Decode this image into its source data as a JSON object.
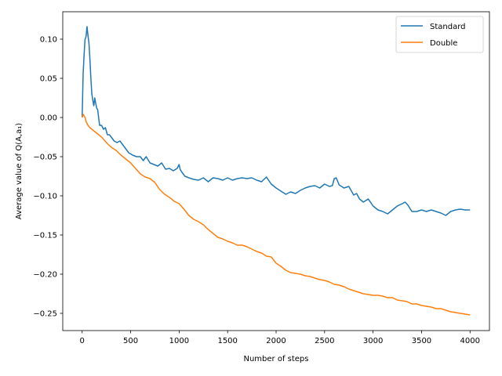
{
  "chart_data": {
    "type": "line",
    "xlabel": "Number of steps",
    "ylabel": "Average value of Q(A,a₁)",
    "xlim": [
      -200,
      4200
    ],
    "ylim": [
      -0.272,
      0.135
    ],
    "x_ticks": [
      0,
      500,
      1000,
      1500,
      2000,
      2500,
      3000,
      3500,
      4000
    ],
    "x_tick_labels": [
      "0",
      "500",
      "1000",
      "1500",
      "2000",
      "2500",
      "3000",
      "3500",
      "4000"
    ],
    "y_ticks": [
      0.1,
      0.05,
      0.0,
      -0.05,
      -0.1,
      -0.15,
      -0.2,
      -0.25
    ],
    "y_tick_labels": [
      "0.10",
      "0.05",
      "0.00",
      "−0.05",
      "−0.10",
      "−0.15",
      "−0.20",
      "−0.25"
    ],
    "grid": false,
    "legend_position": "top-right",
    "series": [
      {
        "name": "Standard",
        "color": "#1f77b4",
        "x": [
          0,
          10,
          20,
          30,
          40,
          50,
          60,
          70,
          80,
          90,
          100,
          110,
          120,
          130,
          140,
          150,
          160,
          170,
          180,
          190,
          200,
          220,
          240,
          260,
          280,
          300,
          330,
          360,
          390,
          420,
          450,
          480,
          520,
          560,
          600,
          630,
          660,
          700,
          740,
          780,
          820,
          860,
          900,
          940,
          980,
          1000,
          1010,
          1030,
          1060,
          1100,
          1150,
          1200,
          1250,
          1300,
          1350,
          1400,
          1450,
          1500,
          1550,
          1600,
          1650,
          1700,
          1750,
          1800,
          1850,
          1900,
          1950,
          2000,
          2050,
          2100,
          2150,
          2200,
          2250,
          2300,
          2350,
          2400,
          2450,
          2500,
          2550,
          2580,
          2600,
          2620,
          2650,
          2700,
          2750,
          2800,
          2830,
          2860,
          2900,
          2950,
          3000,
          3050,
          3100,
          3150,
          3200,
          3250,
          3300,
          3330,
          3360,
          3400,
          3450,
          3500,
          3550,
          3600,
          3650,
          3700,
          3750,
          3800,
          3850,
          3900,
          3950,
          4000
        ],
        "y": [
          0.0,
          0.055,
          0.08,
          0.1,
          0.103,
          0.116,
          0.105,
          0.095,
          0.075,
          0.05,
          0.03,
          0.022,
          0.015,
          0.025,
          0.018,
          0.012,
          0.01,
          0.0,
          -0.01,
          -0.01,
          -0.01,
          -0.015,
          -0.013,
          -0.022,
          -0.022,
          -0.025,
          -0.03,
          -0.032,
          -0.03,
          -0.035,
          -0.04,
          -0.045,
          -0.048,
          -0.05,
          -0.05,
          -0.055,
          -0.05,
          -0.058,
          -0.06,
          -0.062,
          -0.058,
          -0.066,
          -0.065,
          -0.068,
          -0.065,
          -0.06,
          -0.066,
          -0.07,
          -0.075,
          -0.077,
          -0.079,
          -0.08,
          -0.077,
          -0.082,
          -0.077,
          -0.078,
          -0.08,
          -0.077,
          -0.08,
          -0.078,
          -0.077,
          -0.078,
          -0.077,
          -0.08,
          -0.082,
          -0.076,
          -0.085,
          -0.09,
          -0.094,
          -0.098,
          -0.095,
          -0.097,
          -0.093,
          -0.09,
          -0.088,
          -0.087,
          -0.09,
          -0.085,
          -0.088,
          -0.087,
          -0.078,
          -0.077,
          -0.086,
          -0.09,
          -0.088,
          -0.099,
          -0.097,
          -0.104,
          -0.108,
          -0.104,
          -0.113,
          -0.118,
          -0.12,
          -0.123,
          -0.118,
          -0.113,
          -0.11,
          -0.108,
          -0.112,
          -0.12,
          -0.12,
          -0.118,
          -0.12,
          -0.118,
          -0.12,
          -0.122,
          -0.125,
          -0.12,
          -0.118,
          -0.117,
          -0.118,
          -0.118
        ]
      },
      {
        "name": "Double",
        "color": "#ff7f0e",
        "x": [
          0,
          10,
          20,
          30,
          40,
          60,
          80,
          100,
          150,
          200,
          250,
          300,
          350,
          400,
          450,
          500,
          550,
          600,
          650,
          700,
          750,
          800,
          850,
          900,
          950,
          1000,
          1050,
          1100,
          1150,
          1200,
          1250,
          1300,
          1350,
          1400,
          1450,
          1500,
          1550,
          1600,
          1650,
          1700,
          1750,
          1800,
          1850,
          1900,
          1950,
          2000,
          2050,
          2100,
          2150,
          2200,
          2250,
          2300,
          2350,
          2400,
          2450,
          2500,
          2550,
          2600,
          2650,
          2700,
          2750,
          2800,
          2850,
          2900,
          2950,
          3000,
          3050,
          3100,
          3150,
          3200,
          3250,
          3300,
          3350,
          3400,
          3450,
          3500,
          3550,
          3600,
          3650,
          3700,
          3750,
          3800,
          3850,
          3900,
          3950,
          4000
        ],
        "y": [
          0.0,
          0.004,
          0.002,
          0.0,
          -0.005,
          -0.01,
          -0.013,
          -0.015,
          -0.02,
          -0.025,
          -0.032,
          -0.038,
          -0.042,
          -0.048,
          -0.053,
          -0.058,
          -0.065,
          -0.072,
          -0.076,
          -0.078,
          -0.083,
          -0.092,
          -0.098,
          -0.102,
          -0.107,
          -0.11,
          -0.117,
          -0.125,
          -0.13,
          -0.133,
          -0.137,
          -0.143,
          -0.148,
          -0.153,
          -0.155,
          -0.158,
          -0.16,
          -0.163,
          -0.163,
          -0.165,
          -0.168,
          -0.171,
          -0.173,
          -0.177,
          -0.178,
          -0.186,
          -0.19,
          -0.195,
          -0.198,
          -0.199,
          -0.2,
          -0.202,
          -0.203,
          -0.205,
          -0.207,
          -0.208,
          -0.21,
          -0.213,
          -0.214,
          -0.216,
          -0.219,
          -0.221,
          -0.223,
          -0.225,
          -0.226,
          -0.227,
          -0.227,
          -0.228,
          -0.23,
          -0.23,
          -0.233,
          -0.234,
          -0.235,
          -0.238,
          -0.238,
          -0.24,
          -0.241,
          -0.242,
          -0.244,
          -0.244,
          -0.246,
          -0.248,
          -0.249,
          -0.25,
          -0.251,
          -0.252
        ]
      }
    ]
  }
}
